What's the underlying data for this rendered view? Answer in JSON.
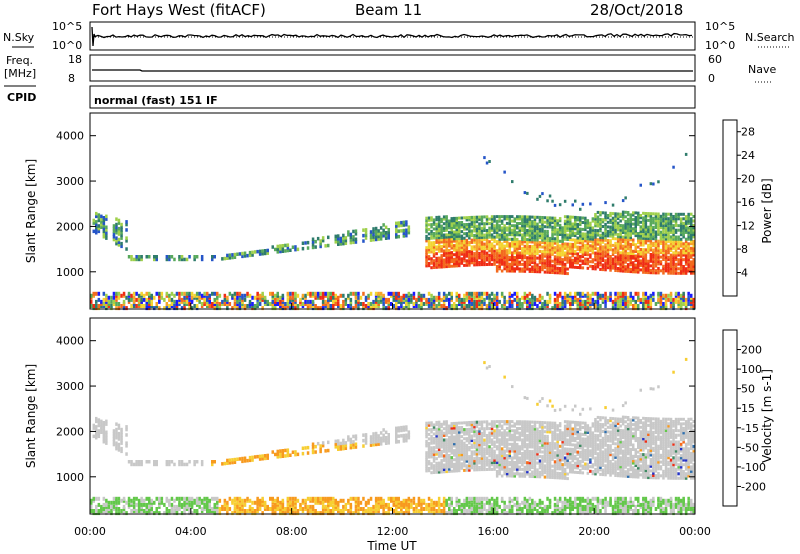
{
  "header": {
    "station": "Fort Hays West (fitACF)",
    "beam": "Beam 11",
    "date": "28/Oct/2018"
  },
  "strip_panels": {
    "nsky_label": "N.Sky",
    "nsky_ticks": [
      "10^5",
      "10^0"
    ],
    "nsearch_label": "N.Search",
    "nsearch_ticks": [
      "10^5",
      "10^0"
    ],
    "freq_label_line1": "Freq.",
    "freq_label_line2": "[MHz]",
    "freq_ticks": [
      "18",
      "8"
    ],
    "nave_label": "Nave",
    "nave_ticks": [
      "60",
      "0"
    ],
    "cpid_label": "CPID",
    "cpid_text": "normal (fast) 151 IF"
  },
  "chart_data": [
    {
      "type": "heatmap",
      "panel": "power",
      "ylabel": "Slant Range [km]",
      "xlabel": "Time UT",
      "x_ticks": [
        "00:00",
        "04:00",
        "08:00",
        "12:00",
        "16:00",
        "20:00",
        "00:00"
      ],
      "x_range_hours": [
        0,
        24
      ],
      "y_ticks": [
        1000,
        2000,
        3000,
        4000
      ],
      "y_range_km": [
        180,
        4500
      ],
      "colorbar": {
        "label": "Power [dB]",
        "ticks": [
          "4",
          "8",
          "12",
          "16",
          "20",
          "24",
          "28"
        ],
        "range": [
          0,
          30
        ],
        "colors": [
          "#1a1aff",
          "#2555c8",
          "#2f7c6c",
          "#58a95b",
          "#9fd04b",
          "#f3d531",
          "#f7a42a",
          "#f36a1e",
          "#ef2c14"
        ]
      },
      "features": [
        {
          "name": "near-range ground scatter",
          "t_hours": [
            0,
            24
          ],
          "range_km": [
            200,
            500
          ]
        },
        {
          "name": "morning band",
          "t_hours": [
            0,
            12.5
          ],
          "range_km": [
            1200,
            2200
          ]
        },
        {
          "name": "main ionospheric band",
          "t_hours": [
            13.2,
            24
          ],
          "range_km": [
            900,
            2300
          ],
          "peak_power_db": 28
        },
        {
          "name": "far range arc",
          "t_hours": [
            15.5,
            24
          ],
          "range_km": [
            2400,
            3800
          ]
        }
      ]
    },
    {
      "type": "heatmap",
      "panel": "velocity",
      "ylabel": "Slant Range [km]",
      "xlabel": "Time UT",
      "x_ticks": [
        "00:00",
        "04:00",
        "08:00",
        "12:00",
        "16:00",
        "20:00",
        "00:00"
      ],
      "x_range_hours": [
        0,
        24
      ],
      "y_ticks": [
        1000,
        2000,
        3000,
        4000
      ],
      "y_range_km": [
        180,
        4500
      ],
      "colorbar": {
        "label": "Velocity [m s-1]",
        "ticks": [
          "200",
          "100",
          "50",
          "15",
          "-15",
          "-50",
          "-100",
          "-200"
        ],
        "colors": [
          "#2332c8",
          "#2f6fae",
          "#3f8a62",
          "#63c84a",
          "#c8c8c8",
          "#f7ce32",
          "#f79a1e",
          "#f7691a",
          "#ef2c14"
        ]
      },
      "features": [
        {
          "name": "ground scatter (grey)",
          "t_hours": [
            13.2,
            24
          ],
          "range_km": [
            900,
            2300
          ]
        },
        {
          "name": "negative velocity band",
          "t_hours": [
            4.5,
            12.5
          ],
          "range_km": [
            1100,
            1600
          ],
          "velocity": -50
        }
      ]
    }
  ]
}
